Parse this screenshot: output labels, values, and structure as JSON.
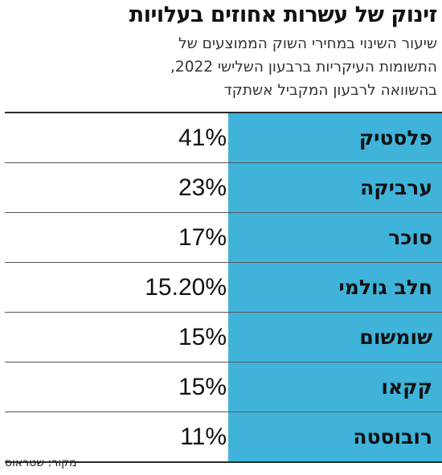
{
  "chart_data": {
    "type": "table",
    "title": "זינוק של עשרות אחוזים בעלויות",
    "subtitle_lines": [
      "שיעור השינוי במחירי השוק הממוצעים של",
      "התשומות העיקריות ברבעון השלישי 2022,",
      "בהשוואה לרבעון המקביל אשתקד"
    ],
    "categories": [
      "פלסטיק",
      "ערביקה",
      "סוכר",
      "חלב גולמי",
      "שומשום",
      "קקאו",
      "רובוסטה"
    ],
    "values": [
      41,
      23,
      17,
      15.2,
      15,
      15,
      11
    ],
    "value_labels": [
      "41%",
      "23%",
      "17%",
      "15.20%",
      "15%",
      "15%",
      "11%"
    ],
    "source": "מקור: שטראוס"
  },
  "colors": {
    "category_fill": "#3fb3d9",
    "text": "#111111",
    "rule": "#2a2a2a"
  }
}
